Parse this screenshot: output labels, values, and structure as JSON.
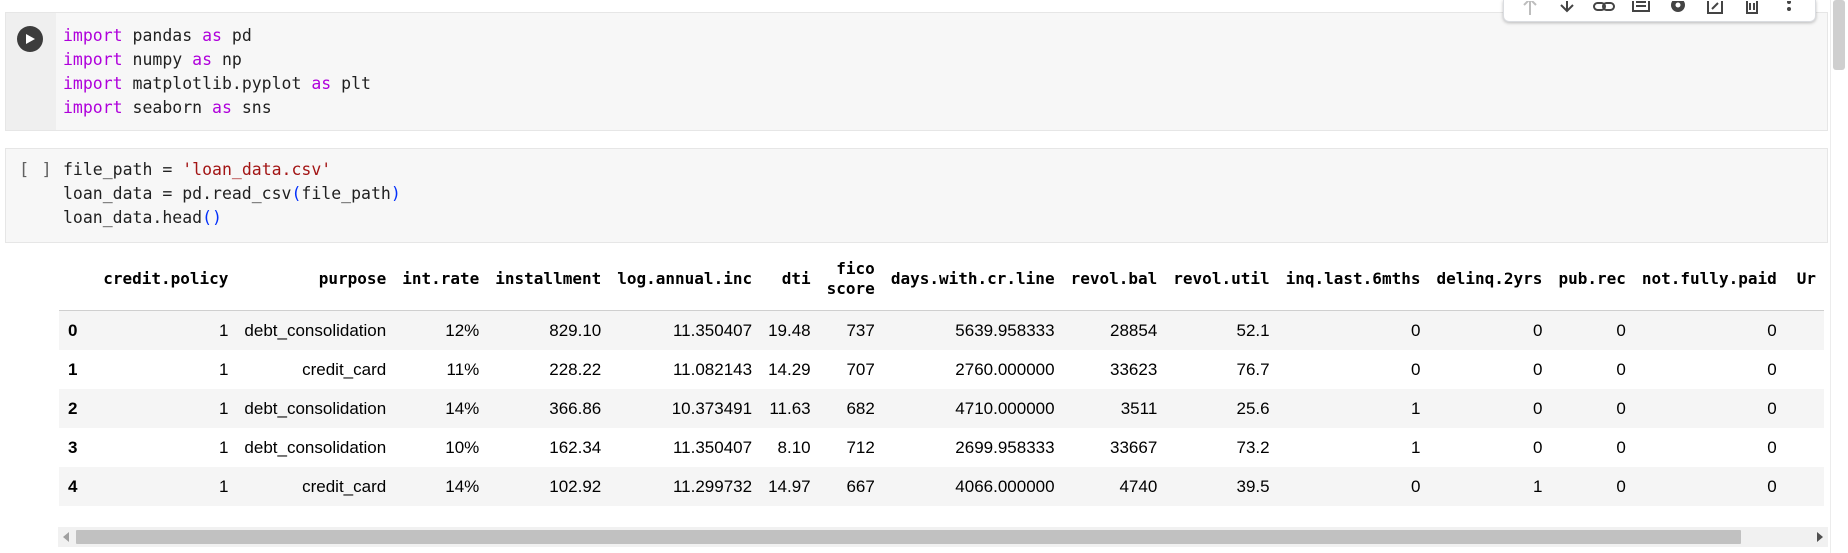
{
  "cells": [
    {
      "type": "code",
      "executed": true,
      "lines": [
        [
          {
            "t": "import",
            "c": "kw"
          },
          {
            "t": " pandas ",
            "c": ""
          },
          {
            "t": "as",
            "c": "kw"
          },
          {
            "t": " pd",
            "c": ""
          }
        ],
        [
          {
            "t": "import",
            "c": "kw"
          },
          {
            "t": " numpy ",
            "c": ""
          },
          {
            "t": "as",
            "c": "kw"
          },
          {
            "t": " np",
            "c": ""
          }
        ],
        [
          {
            "t": "import",
            "c": "kw"
          },
          {
            "t": " matplotlib.pyplot ",
            "c": ""
          },
          {
            "t": "as",
            "c": "kw"
          },
          {
            "t": " plt",
            "c": ""
          }
        ],
        [
          {
            "t": "import",
            "c": "kw"
          },
          {
            "t": " seaborn ",
            "c": ""
          },
          {
            "t": "as",
            "c": "kw"
          },
          {
            "t": " sns",
            "c": ""
          }
        ]
      ]
    },
    {
      "type": "code",
      "execution_count": "[ ]",
      "lines": [
        [
          {
            "t": "file_path = ",
            "c": ""
          },
          {
            "t": "'loan_data.csv'",
            "c": "str"
          }
        ],
        [
          {
            "t": "loan_data = pd.read_csv",
            "c": ""
          },
          {
            "t": "(",
            "c": "paren"
          },
          {
            "t": "file_path",
            "c": ""
          },
          {
            "t": ")",
            "c": "paren"
          }
        ],
        [
          {
            "t": "loan_data.head",
            "c": ""
          },
          {
            "t": "()",
            "c": "paren"
          }
        ]
      ]
    }
  ],
  "toolbar": {
    "buttons": [
      "move-up-icon",
      "move-down-icon",
      "link-icon",
      "comment-icon",
      "gear-icon",
      "mirror-cell-icon",
      "delete-icon",
      "more-vert-icon"
    ]
  },
  "dataframe": {
    "columns": [
      "credit.policy",
      "purpose",
      "int.rate",
      "installment",
      "log.annual.inc",
      "dti",
      "fico\nscore",
      "days.with.cr.line",
      "revol.bal",
      "revol.util",
      "inq.last.6mths",
      "delinq.2yrs",
      "pub.rec",
      "not.fully.paid",
      "Ur"
    ],
    "rows": [
      {
        "index": "0",
        "cells": [
          "1",
          "debt_consolidation",
          "12%",
          "829.10",
          "11.350407",
          "19.48",
          "737",
          "5639.958333",
          "28854",
          "52.1",
          "0",
          "0",
          "0",
          "0",
          ""
        ]
      },
      {
        "index": "1",
        "cells": [
          "1",
          "credit_card",
          "11%",
          "228.22",
          "11.082143",
          "14.29",
          "707",
          "2760.000000",
          "33623",
          "76.7",
          "0",
          "0",
          "0",
          "0",
          ""
        ]
      },
      {
        "index": "2",
        "cells": [
          "1",
          "debt_consolidation",
          "14%",
          "366.86",
          "10.373491",
          "11.63",
          "682",
          "4710.000000",
          "3511",
          "25.6",
          "1",
          "0",
          "0",
          "0",
          ""
        ]
      },
      {
        "index": "3",
        "cells": [
          "1",
          "debt_consolidation",
          "10%",
          "162.34",
          "11.350407",
          "8.10",
          "712",
          "2699.958333",
          "33667",
          "73.2",
          "1",
          "0",
          "0",
          "0",
          ""
        ]
      },
      {
        "index": "4",
        "cells": [
          "1",
          "credit_card",
          "14%",
          "102.92",
          "11.299732",
          "14.97",
          "667",
          "4066.000000",
          "4740",
          "39.5",
          "0",
          "1",
          "0",
          "0",
          ""
        ]
      }
    ]
  }
}
